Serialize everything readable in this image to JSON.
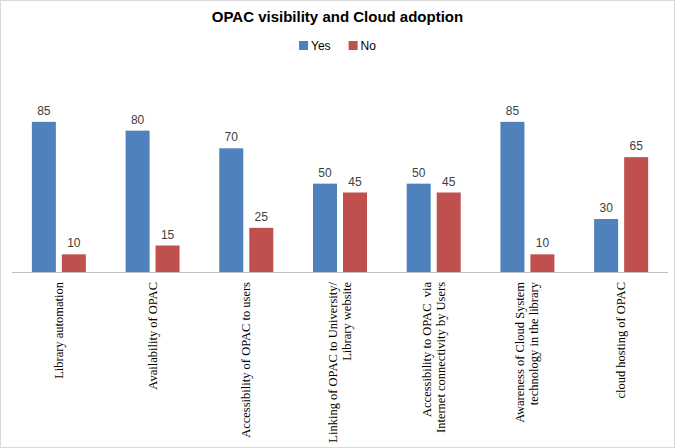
{
  "chart_data": {
    "type": "bar",
    "title": "OPAC visibility and Cloud adoption",
    "categories": [
      "Library automation",
      "Availability of OPAC",
      "Accessibility of OPAC to users",
      "Linking of OPAC to University/ Library website",
      "Accessibility to OPAC  via Internet connectivity by Users",
      "Awareness of Cloud System technology in the library",
      "cloud hosting of OPAC"
    ],
    "series": [
      {
        "name": "Yes",
        "color": "#4f81bd",
        "values": [
          85,
          80,
          70,
          50,
          50,
          85,
          30
        ]
      },
      {
        "name": "No",
        "color": "#c0504d",
        "values": [
          10,
          15,
          25,
          45,
          45,
          10,
          65
        ]
      }
    ],
    "ylim": [
      0,
      90
    ],
    "grid": false,
    "legend": "top",
    "data_labels": true,
    "tick_labels": "x"
  }
}
